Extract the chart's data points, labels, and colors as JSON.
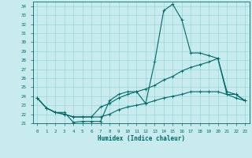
{
  "xlabel": "Humidex (Indice chaleur)",
  "xlim": [
    -0.5,
    23.5
  ],
  "ylim": [
    21,
    34.5
  ],
  "yticks": [
    21,
    22,
    23,
    24,
    25,
    26,
    27,
    28,
    29,
    30,
    31,
    32,
    33,
    34
  ],
  "xticks": [
    0,
    1,
    2,
    3,
    4,
    5,
    6,
    7,
    8,
    9,
    10,
    11,
    12,
    13,
    14,
    15,
    16,
    17,
    18,
    19,
    20,
    21,
    22,
    23
  ],
  "background_color": "#c8ecee",
  "grid_color": "#99d4d8",
  "line_color": "#006868",
  "line1_y": [
    23.8,
    22.7,
    22.2,
    22.2,
    21.1,
    21.2,
    21.2,
    21.2,
    23.5,
    24.2,
    24.5,
    24.5,
    23.2,
    27.8,
    33.5,
    34.2,
    32.5,
    28.8,
    28.8,
    28.5,
    28.2,
    24.2,
    24.2,
    23.5
  ],
  "line2_y": [
    23.8,
    22.7,
    22.2,
    22.0,
    21.7,
    21.7,
    21.7,
    22.8,
    23.2,
    23.8,
    24.2,
    24.5,
    24.8,
    25.2,
    25.8,
    26.2,
    26.8,
    27.2,
    27.5,
    27.8,
    28.2,
    24.5,
    24.2,
    23.5
  ],
  "line3_y": [
    23.8,
    22.7,
    22.2,
    22.0,
    21.7,
    21.7,
    21.7,
    21.7,
    22.0,
    22.5,
    22.8,
    23.0,
    23.2,
    23.5,
    23.8,
    24.0,
    24.2,
    24.5,
    24.5,
    24.5,
    24.5,
    24.2,
    23.8,
    23.5
  ]
}
